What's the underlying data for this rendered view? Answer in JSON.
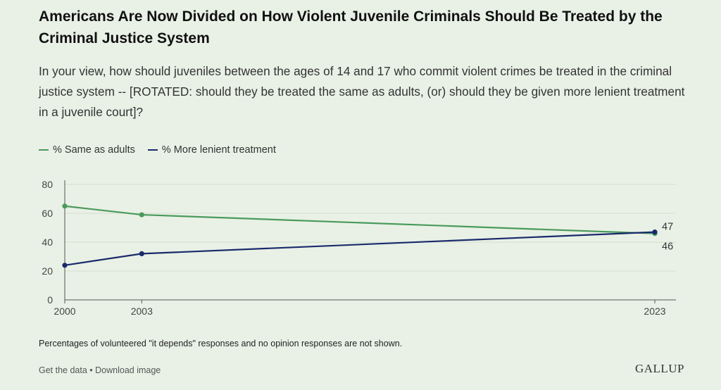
{
  "header": {
    "title": "Americans Are Now Divided on How Violent Juvenile Criminals Should Be Treated by the Criminal Justice System",
    "subtitle": "In your view, how should juveniles between the ages of 14 and 17 who commit violent crimes be treated in the criminal justice system -- [ROTATED: should they be treated the same as adults, (or) should they be given more lenient treatment in a juvenile court]?"
  },
  "legend": {
    "same_label": "% Same as adults",
    "lenient_label": "% More lenient treatment"
  },
  "colors": {
    "same": "#4b9a5c",
    "lenient": "#1a2a6b",
    "grid": "#d3ddcf",
    "axis": "#555555"
  },
  "chart_data": {
    "type": "line",
    "x": [
      2000,
      2003,
      2023
    ],
    "series": [
      {
        "name": "% Same as adults",
        "values": [
          65,
          59,
          46
        ]
      },
      {
        "name": "% More lenient treatment",
        "values": [
          24,
          32,
          47
        ]
      }
    ],
    "y_ticks": [
      0,
      20,
      40,
      60,
      80
    ],
    "x_ticks": [
      2000,
      2003,
      2023
    ],
    "ylim": [
      0,
      80
    ],
    "xlim": [
      2000,
      2023
    ],
    "end_labels": [
      "46",
      "47"
    ],
    "grid": true,
    "legend_position": "top-left"
  },
  "footer": {
    "note": "Percentages of volunteered \"it depends\" responses and no opinion responses are not shown.",
    "get_data": "Get the data",
    "separator": " • ",
    "download": "Download image",
    "logo": "GALLUP"
  }
}
